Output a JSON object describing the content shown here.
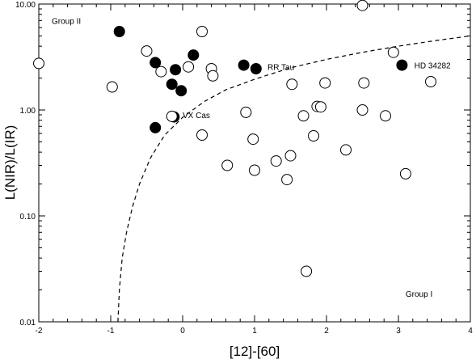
{
  "chart_data": {
    "type": "scatter",
    "title": "",
    "xlabel": "[12]-[60]",
    "ylabel": "L(NIR)/L(IR)",
    "xlim": [
      -2,
      4
    ],
    "ylim": [
      0.01,
      10
    ],
    "yscale": "log",
    "grid": false,
    "x_ticks": [
      "-2",
      "-1",
      "0",
      "1",
      "2",
      "3",
      "4"
    ],
    "y_ticks": [
      "0.01",
      "0.10",
      "1.00",
      "10.00"
    ],
    "series": [
      {
        "marker": "filled-circle",
        "points": [
          [
            -0.88,
            5.5
          ],
          [
            -0.38,
            2.8
          ],
          [
            -0.15,
            1.75
          ],
          [
            -0.1,
            2.4
          ],
          [
            -0.02,
            1.52
          ],
          [
            0.15,
            3.3
          ],
          [
            0.85,
            2.65
          ],
          [
            1.02,
            2.45
          ],
          [
            3.05,
            2.65
          ],
          [
            -0.38,
            0.68
          ],
          [
            -0.12,
            0.86
          ]
        ]
      },
      {
        "marker": "open-circle",
        "points": [
          [
            -2.0,
            2.75
          ],
          [
            -0.98,
            1.65
          ],
          [
            -0.5,
            3.6
          ],
          [
            -0.3,
            2.3
          ],
          [
            0.08,
            2.55
          ],
          [
            0.27,
            5.5
          ],
          [
            0.4,
            2.45
          ],
          [
            0.42,
            2.1
          ],
          [
            -0.15,
            0.87
          ],
          [
            0.27,
            0.58
          ],
          [
            0.62,
            0.3
          ],
          [
            0.88,
            0.95
          ],
          [
            0.98,
            0.53
          ],
          [
            1.0,
            0.27
          ],
          [
            1.3,
            0.33
          ],
          [
            1.45,
            0.22
          ],
          [
            1.5,
            0.37
          ],
          [
            1.52,
            1.75
          ],
          [
            1.68,
            0.88
          ],
          [
            1.72,
            0.03
          ],
          [
            1.82,
            0.57
          ],
          [
            1.87,
            1.08
          ],
          [
            1.92,
            1.07
          ],
          [
            1.98,
            1.8
          ],
          [
            2.27,
            0.42
          ],
          [
            2.5,
            9.7
          ],
          [
            2.5,
            1.0
          ],
          [
            2.52,
            1.8
          ],
          [
            2.82,
            0.88
          ],
          [
            2.93,
            3.5
          ],
          [
            3.1,
            0.25
          ],
          [
            3.45,
            1.85
          ]
        ]
      }
    ],
    "curve": {
      "style": "dashed",
      "points": [
        [
          -0.9,
          0.01
        ],
        [
          -0.88,
          0.02
        ],
        [
          -0.84,
          0.04
        ],
        [
          -0.78,
          0.07
        ],
        [
          -0.7,
          0.12
        ],
        [
          -0.6,
          0.2
        ],
        [
          -0.45,
          0.35
        ],
        [
          -0.25,
          0.58
        ],
        [
          0.0,
          0.85
        ],
        [
          0.3,
          1.2
        ],
        [
          0.6,
          1.55
        ],
        [
          1.0,
          1.95
        ],
        [
          1.5,
          2.5
        ],
        [
          2.0,
          3.0
        ],
        [
          2.5,
          3.5
        ],
        [
          3.0,
          4.0
        ],
        [
          3.5,
          4.5
        ],
        [
          4.0,
          5.0
        ]
      ]
    },
    "annotations": [
      {
        "text": "Group II",
        "x": -1.82,
        "y": 7.0
      },
      {
        "text": "Group I",
        "x": 3.1,
        "y": 0.0185
      },
      {
        "text": "RR Tau",
        "x": 1.18,
        "y": 2.55
      },
      {
        "text": "HD 34282",
        "x": 3.22,
        "y": 2.65
      },
      {
        "text": "VX Cas",
        "x": 0.0,
        "y": 0.9
      }
    ]
  }
}
